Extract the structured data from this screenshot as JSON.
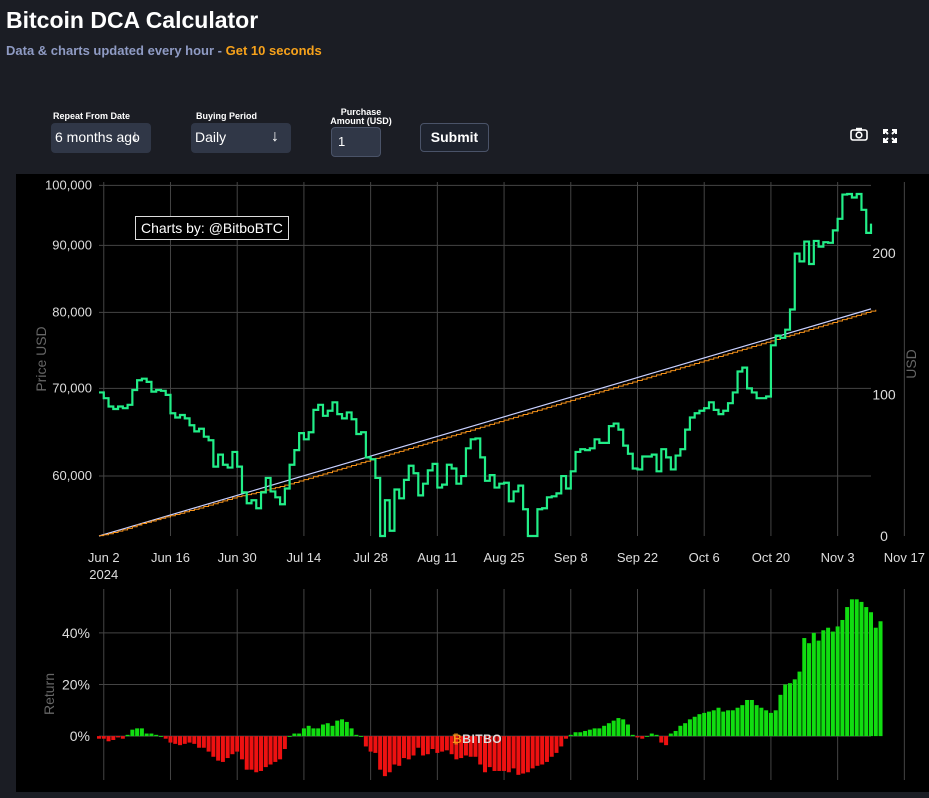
{
  "header": {
    "title": "Bitcoin DCA Calculator",
    "subtitle_prefix": "Data & charts updated every hour - ",
    "subtitle_highlight": "Get 10 seconds"
  },
  "form": {
    "repeat_label": "Repeat From Date",
    "repeat_value": "6 months ago",
    "period_label": "Buying Period",
    "period_value": "Daily",
    "amount_label_1": "Purchase",
    "amount_label_2": "Amount (USD)",
    "amount_value": "1",
    "submit_label": "Submit"
  },
  "colors": {
    "price": "#22ee88",
    "value": "#f7931a",
    "invested": "#c8d0ff",
    "positive": "#11dd11",
    "negative": "#ee1111",
    "grid": "#444444",
    "axis_text": "#dddddd"
  },
  "legend": "Charts by: @BitboBTC",
  "watermark": "BITBO",
  "chart_data": {
    "type": "line",
    "title": "",
    "x_ticks": [
      "Jun 2",
      "Jun 16",
      "Jun 30",
      "Jul 14",
      "Jul 28",
      "Aug 11",
      "Aug 25",
      "Sep 8",
      "Sep 22",
      "Oct 6",
      "Oct 20",
      "Nov 3",
      "Nov 17"
    ],
    "x_year": "2024",
    "y_left_label": "Price USD",
    "y_left_ticks": [
      "60,000",
      "70,000",
      "80,000",
      "90,000",
      "100,000"
    ],
    "y_left_tick_values": [
      60000,
      70000,
      80000,
      90000,
      100000
    ],
    "ylim_left": [
      54000,
      100600
    ],
    "y_right_label": "USD",
    "y_right_ticks": [
      "0",
      "100",
      "200"
    ],
    "y_right_tick_values": [
      0,
      100,
      200
    ],
    "ylim_right": [
      0,
      250
    ],
    "price": [
      69500,
      68800,
      67800,
      67500,
      67800,
      67600,
      68000,
      69800,
      71000,
      71200,
      70800,
      69600,
      69800,
      69700,
      69200,
      67000,
      66500,
      66800,
      66400,
      65600,
      64900,
      65200,
      64300,
      63900,
      61000,
      62300,
      61200,
      60900,
      62600,
      61000,
      58300,
      57200,
      57500,
      56700,
      58300,
      59800,
      58400,
      57800,
      57100,
      58700,
      61200,
      62800,
      64700,
      64000,
      64800,
      67400,
      68000,
      66700,
      67300,
      68300,
      66900,
      66400,
      67100,
      66300,
      64600,
      64800,
      62000,
      61800,
      59800,
      54000,
      57500,
      54500,
      58600,
      57700,
      59600,
      61100,
      60300,
      58000,
      59200,
      60600,
      61300,
      58800,
      59100,
      61200,
      60800,
      59200,
      60000,
      63000,
      64000,
      64100,
      62000,
      59500,
      60100,
      58800,
      59200,
      59300,
      57400,
      58400,
      59000,
      56600,
      54000,
      54000,
      56600,
      56700,
      57800,
      57900,
      58200,
      60000,
      58700,
      60500,
      62600,
      62900,
      62800,
      63000,
      64000,
      63600,
      63600,
      65500,
      65800,
      65100,
      63300,
      62400,
      60800,
      60700,
      62100,
      62100,
      62300,
      60500,
      62900,
      62000,
      60700,
      62200,
      62900,
      65100,
      66500,
      67000,
      67300,
      67600,
      68300,
      67400,
      66900,
      67300,
      68200,
      69500,
      72100,
      72600,
      70000,
      69500,
      68800,
      68800,
      69000,
      75500,
      76800,
      76500,
      77600,
      80400,
      88700,
      87500,
      90600,
      87100,
      90700,
      89800,
      90500,
      90400,
      92400,
      94300,
      98400,
      98500,
      97900,
      98500,
      95800,
      92000,
      93500
    ],
    "value": [
      0.3,
      0.9,
      1.6,
      2.5,
      3.4,
      4.3,
      5.4,
      6.5,
      7.8,
      8.8,
      9.7,
      10.6,
      11.6,
      12.5,
      13.5,
      14.3,
      15.2,
      16.1,
      17.1,
      18.0,
      18.9,
      19.8,
      20.8,
      21.8,
      22.8,
      23.8,
      24.8,
      25.8,
      26.8,
      27.8,
      28.4,
      29.2,
      29.8,
      30.7,
      31.5,
      32.5,
      33.4,
      34.2,
      35.0,
      35.9,
      36.8,
      37.8,
      38.8,
      39.8,
      40.8,
      41.8,
      42.8,
      43.8,
      44.8,
      45.8,
      46.8,
      47.8,
      48.8,
      49.8,
      50.8,
      51.8,
      52.8,
      53.8,
      54.8,
      55.8,
      56.8,
      57.8,
      58.8,
      59.8,
      60.8,
      61.8,
      62.8,
      63.8,
      64.8,
      65.8,
      66.8,
      67.8,
      68.8,
      69.8,
      70.8,
      71.8,
      72.8,
      73.8,
      74.8,
      75.8,
      76.8,
      77.8,
      78.8,
      79.8,
      80.8,
      81.8,
      82.8,
      83.8,
      84.8,
      85.8,
      86.8,
      87.8,
      88.8,
      89.8,
      90.8,
      91.8,
      92.8,
      93.8,
      94.8,
      95.8,
      96.8,
      97.8,
      98.8,
      99.8,
      100.8,
      101.8,
      102.8,
      103.8,
      104.8,
      105.8,
      106.8,
      107.8,
      108.8,
      109.8,
      110.8,
      111.8,
      112.8,
      113.8,
      114.8,
      115.8,
      116.8,
      117.8,
      118.8,
      119.8,
      120.8,
      121.8,
      122.8,
      123.8,
      124.8,
      125.8,
      126.8,
      127.8,
      128.8,
      129.8,
      130.8,
      131.8,
      132.8,
      133.8,
      134.8,
      135.8,
      136.8,
      137.8,
      138.8,
      139.8,
      140.8,
      141.8,
      142.8,
      143.8,
      144.8,
      145.8,
      146.8,
      147.8,
      148.8,
      149.8,
      150.8,
      151.8,
      152.8,
      153.8,
      154.8,
      155.8,
      156.8,
      157.8,
      158.8,
      159.8
    ],
    "return_pct": [
      -1.0,
      -1.0,
      -2.0,
      -1.5,
      -0.5,
      -1.0,
      0.5,
      2.5,
      3.0,
      3.0,
      1.0,
      1.0,
      0.5,
      0.0,
      -1.0,
      -2.5,
      -3.0,
      -3.5,
      -3.0,
      -2.5,
      -3.0,
      -4.5,
      -4.5,
      -6.0,
      -8.0,
      -9.5,
      -10.0,
      -8.5,
      -7.0,
      -6.0,
      -9.0,
      -13.0,
      -13.0,
      -14.0,
      -13.5,
      -12.0,
      -11.0,
      -10.0,
      -9.0,
      -5.0,
      0.0,
      1.0,
      1.0,
      3.0,
      4.0,
      3.0,
      3.0,
      4.5,
      5.0,
      4.0,
      6.0,
      6.5,
      5.5,
      3.0,
      0.5,
      0.0,
      -4.0,
      -6.0,
      -6.5,
      -13.0,
      -15.5,
      -14.0,
      -11.0,
      -11.5,
      -8.5,
      -9.0,
      -7.5,
      -4.5,
      -7.5,
      -7.0,
      -5.0,
      -6.5,
      -6.0,
      -5.5,
      -7.0,
      -9.0,
      -8.5,
      -7.5,
      -8.0,
      -8.0,
      -11.0,
      -14.0,
      -12.0,
      -13.5,
      -13.5,
      -13.5,
      -14.0,
      -12.5,
      -15.0,
      -14.5,
      -14.0,
      -12.5,
      -11.5,
      -11.0,
      -10.0,
      -8.0,
      -6.5,
      -4.0,
      -1.0,
      0.5,
      1.5,
      1.5,
      2.0,
      2.5,
      3.0,
      3.0,
      4.0,
      5.0,
      6.0,
      7.0,
      6.5,
      4.5,
      0.5,
      -0.5,
      -1.0,
      0.0,
      1.0,
      0.5,
      -2.5,
      -3.5,
      1.0,
      2.0,
      4.0,
      5.0,
      6.5,
      7.5,
      8.5,
      9.0,
      9.5,
      10.0,
      11.0,
      9.5,
      10.0,
      10.0,
      11.0,
      12.0,
      14.0,
      14.0,
      12.0,
      11.0,
      10.0,
      9.0,
      10.0,
      16.0,
      20.0,
      20.5,
      22.0,
      25.0,
      38.0,
      36.0,
      40.0,
      37.0,
      41.0,
      42.0,
      40.5,
      42.5,
      45.0,
      50.0,
      53.0,
      53.0,
      52.0,
      50.0,
      48.0,
      42.0,
      44.5
    ],
    "return_ylabel": "Return",
    "return_ticks": [
      "0%",
      "20%",
      "40%"
    ],
    "return_tick_values": [
      0,
      20,
      40
    ],
    "return_ylim": [
      -17,
      57
    ]
  }
}
